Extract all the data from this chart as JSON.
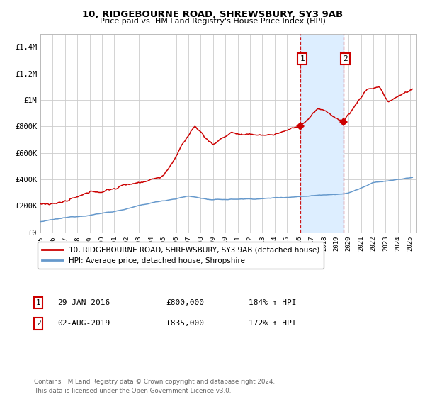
{
  "title": "10, RIDGEBOURNE ROAD, SHREWSBURY, SY3 9AB",
  "subtitle": "Price paid vs. HM Land Registry's House Price Index (HPI)",
  "legend_line1": "10, RIDGEBOURNE ROAD, SHREWSBURY, SY3 9AB (detached house)",
  "legend_line2": "HPI: Average price, detached house, Shropshire",
  "annotation1_label": "1",
  "annotation1_date": "29-JAN-2016",
  "annotation1_price": "£800,000",
  "annotation1_hpi": "184% ↑ HPI",
  "annotation2_label": "2",
  "annotation2_date": "02-AUG-2019",
  "annotation2_price": "£835,000",
  "annotation2_hpi": "172% ↑ HPI",
  "footer": "Contains HM Land Registry data © Crown copyright and database right 2024.\nThis data is licensed under the Open Government Licence v3.0.",
  "red_color": "#cc0000",
  "blue_color": "#6699cc",
  "background_color": "#ffffff",
  "grid_color": "#cccccc",
  "highlight_color": "#ddeeff",
  "ylim": [
    0,
    1500000
  ],
  "yticks": [
    0,
    200000,
    400000,
    600000,
    800000,
    1000000,
    1200000,
    1400000
  ],
  "ytick_labels": [
    "£0",
    "£200K",
    "£400K",
    "£600K",
    "£800K",
    "£1M",
    "£1.2M",
    "£1.4M"
  ],
  "sale1_x": 2016.08,
  "sale1_y": 800000,
  "sale2_x": 2019.58,
  "sale2_y": 835000,
  "xmin": 1995,
  "xmax": 2025.5
}
